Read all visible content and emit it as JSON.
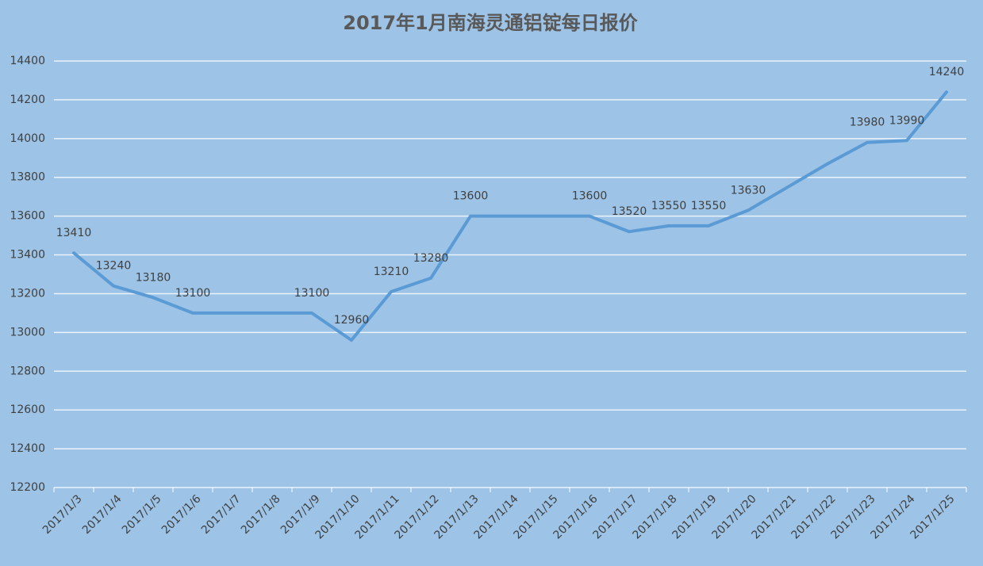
{
  "chart_data": {
    "type": "line",
    "title": "2017年1月南海灵通铝锭每日报价",
    "categories": [
      "2017/1/3",
      "2017/1/4",
      "2017/1/5",
      "2017/1/6",
      "2017/1/7",
      "2017/1/8",
      "2017/1/9",
      "2017/1/10",
      "2017/1/11",
      "2017/1/12",
      "2017/1/13",
      "2017/1/14",
      "2017/1/15",
      "2017/1/16",
      "2017/1/17",
      "2017/1/18",
      "2017/1/19",
      "2017/1/20",
      "2017/1/21",
      "2017/1/22",
      "2017/1/23",
      "2017/1/24",
      "2017/1/25"
    ],
    "values": [
      13410,
      13240,
      13180,
      13100,
      13100,
      13100,
      13100,
      12960,
      13210,
      13280,
      13600,
      13600,
      13600,
      13600,
      13520,
      13550,
      13550,
      13630,
      13750,
      13870,
      13980,
      13990,
      14240
    ],
    "value_labels": [
      "13410",
      "13240",
      "13180",
      "13100",
      null,
      null,
      "13100",
      "12960",
      "13210",
      "13280",
      "13600",
      null,
      null,
      "13600",
      "13520",
      "13550",
      "13550",
      "13630",
      null,
      null,
      "13980",
      "13990",
      "14240"
    ],
    "color": "#5b9bd5",
    "ylim": [
      12200,
      14400
    ],
    "yticks": [
      12200,
      12400,
      12600,
      12800,
      13000,
      13200,
      13400,
      13600,
      13800,
      14000,
      14200,
      14400
    ],
    "grid": true
  }
}
